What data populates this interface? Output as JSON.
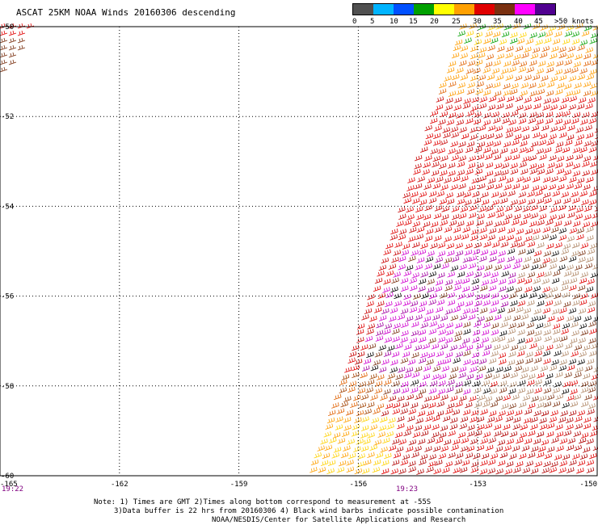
{
  "title": "ASCAT 25KM NOAA Winds 20160306 descending",
  "legend": {
    "colors": [
      "#555555",
      "#8c8c8c",
      "#00c0ff",
      "#0060ff",
      "#0000d0",
      "#00a000",
      "#00e000",
      "#ffff00",
      "#ffc800",
      "#ff9600",
      "#ff5a00",
      "#e60000",
      "#b40000",
      "#7a3c14",
      "#b48c64",
      "#ff00ff",
      "#b400ff",
      "#6400c8",
      "#320064"
    ],
    "labels": [
      "0",
      "5",
      "10",
      "15",
      "20",
      "25",
      "30",
      "35",
      "40",
      "45",
      ">50 knots"
    ]
  },
  "map": {
    "lon_ticks": [
      "-165",
      "-162",
      "-159",
      "-156",
      "-153",
      "-150"
    ],
    "lat_ticks": [
      "-50",
      "-52",
      "-54",
      "-56",
      "-58",
      "-60"
    ],
    "time_left": "19:22",
    "time_mid": "19:23"
  },
  "notes": [
    "Note: 1) Times are GMT 2)Times along bottom correspond to measurement at -55S",
    "3)Data buffer is 22 hrs from 20160306 4) Black wind barbs indicate possible contamination",
    "NOAA/NESDIS/Center for Satellite Applications and Research"
  ]
}
